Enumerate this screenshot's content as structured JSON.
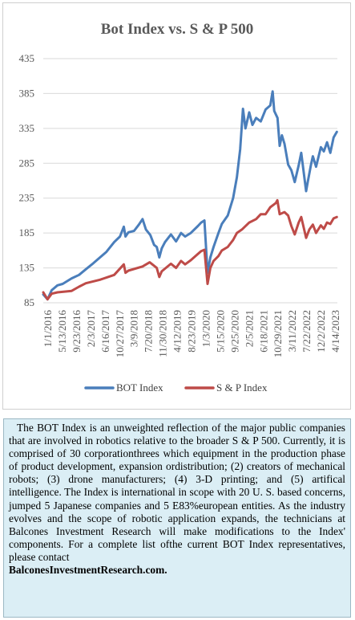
{
  "chart_data": {
    "type": "line",
    "title": "Bot Index vs. S & P 500",
    "xlabel": "",
    "ylabel": "",
    "ylim": [
      85,
      435
    ],
    "yticks": [
      85,
      135,
      185,
      235,
      285,
      335,
      385,
      435
    ],
    "xticks": [
      "1/1/2016",
      "5/13/2016",
      "9/23/2016",
      "2/3/2017",
      "6/16/2017",
      "10/27/2017",
      "3/9/2018",
      "7/20/2018",
      "11/30/2018",
      "4/12/2019",
      "8/23/2019",
      "1/3/2020",
      "5/15/2020",
      "9/25/2020",
      "2/5/2021",
      "6/18/2021",
      "10/29/2021",
      "3/11/2022",
      "7/22/2022",
      "12/2/2022",
      "4/14/2023"
    ],
    "grid": true,
    "legend": "bottom",
    "series": [
      {
        "name": "BOT Index",
        "color": "#4a7ebb",
        "points": [
          [
            "2016-01-01",
            97
          ],
          [
            "2016-02-10",
            90
          ],
          [
            "2016-03-20",
            103
          ],
          [
            "2016-05-13",
            110
          ],
          [
            "2016-07-01",
            112
          ],
          [
            "2016-09-23",
            120
          ],
          [
            "2016-12-01",
            125
          ],
          [
            "2017-02-03",
            133
          ],
          [
            "2017-04-01",
            140
          ],
          [
            "2017-06-16",
            150
          ],
          [
            "2017-08-15",
            158
          ],
          [
            "2017-10-27",
            172
          ],
          [
            "2017-12-20",
            180
          ],
          [
            "2018-01-25",
            194
          ],
          [
            "2018-02-10",
            180
          ],
          [
            "2018-03-09",
            186
          ],
          [
            "2018-05-01",
            188
          ],
          [
            "2018-06-15",
            197
          ],
          [
            "2018-07-20",
            205
          ],
          [
            "2018-08-20",
            190
          ],
          [
            "2018-10-01",
            182
          ],
          [
            "2018-11-05",
            168
          ],
          [
            "2018-11-30",
            165
          ],
          [
            "2018-12-24",
            150
          ],
          [
            "2019-01-15",
            163
          ],
          [
            "2019-02-15",
            172
          ],
          [
            "2019-04-12",
            183
          ],
          [
            "2019-05-30",
            173
          ],
          [
            "2019-07-15",
            185
          ],
          [
            "2019-08-23",
            180
          ],
          [
            "2019-10-15",
            185
          ],
          [
            "2019-12-20",
            195
          ],
          [
            "2020-01-20",
            200
          ],
          [
            "2020-02-20",
            203
          ],
          [
            "2020-03-20",
            128
          ],
          [
            "2020-04-15",
            150
          ],
          [
            "2020-05-15",
            165
          ],
          [
            "2020-06-30",
            185
          ],
          [
            "2020-08-01",
            198
          ],
          [
            "2020-09-25",
            210
          ],
          [
            "2020-11-15",
            235
          ],
          [
            "2020-12-20",
            265
          ],
          [
            "2021-01-20",
            305
          ],
          [
            "2021-02-15",
            363
          ],
          [
            "2021-03-10",
            335
          ],
          [
            "2021-04-15",
            358
          ],
          [
            "2021-05-15",
            340
          ],
          [
            "2021-06-18",
            350
          ],
          [
            "2021-08-01",
            345
          ],
          [
            "2021-09-15",
            362
          ],
          [
            "2021-10-29",
            368
          ],
          [
            "2021-11-20",
            388
          ],
          [
            "2021-12-05",
            360
          ],
          [
            "2022-01-05",
            350
          ],
          [
            "2022-01-25",
            310
          ],
          [
            "2022-02-15",
            325
          ],
          [
            "2022-03-11",
            313
          ],
          [
            "2022-04-15",
            283
          ],
          [
            "2022-05-15",
            275
          ],
          [
            "2022-06-15",
            258
          ],
          [
            "2022-07-22",
            282
          ],
          [
            "2022-08-15",
            300
          ],
          [
            "2022-09-30",
            245
          ],
          [
            "2022-10-15",
            258
          ],
          [
            "2022-11-15",
            283
          ],
          [
            "2022-12-02",
            295
          ],
          [
            "2023-01-01",
            280
          ],
          [
            "2023-02-15",
            308
          ],
          [
            "2023-03-15",
            302
          ],
          [
            "2023-04-14",
            315
          ],
          [
            "2023-05-15",
            300
          ],
          [
            "2023-06-15",
            322
          ],
          [
            "2023-07-15",
            330
          ]
        ]
      },
      {
        "name": "S & P Index",
        "color": "#be4b48",
        "points": [
          [
            "2016-01-01",
            100
          ],
          [
            "2016-02-10",
            90
          ],
          [
            "2016-03-20",
            98
          ],
          [
            "2016-05-13",
            100
          ],
          [
            "2016-09-23",
            102
          ],
          [
            "2016-12-01",
            108
          ],
          [
            "2017-02-03",
            113
          ],
          [
            "2017-06-16",
            118
          ],
          [
            "2017-10-27",
            125
          ],
          [
            "2018-01-25",
            140
          ],
          [
            "2018-02-10",
            128
          ],
          [
            "2018-03-09",
            131
          ],
          [
            "2018-07-20",
            137
          ],
          [
            "2018-09-25",
            143
          ],
          [
            "2018-11-30",
            135
          ],
          [
            "2018-12-24",
            122
          ],
          [
            "2019-01-15",
            130
          ],
          [
            "2019-04-12",
            141
          ],
          [
            "2019-05-30",
            135
          ],
          [
            "2019-07-15",
            145
          ],
          [
            "2019-08-23",
            140
          ],
          [
            "2019-10-15",
            146
          ],
          [
            "2019-12-20",
            155
          ],
          [
            "2020-01-20",
            159
          ],
          [
            "2020-02-20",
            161
          ],
          [
            "2020-03-20",
            112
          ],
          [
            "2020-04-15",
            135
          ],
          [
            "2020-05-15",
            145
          ],
          [
            "2020-06-30",
            152
          ],
          [
            "2020-08-01",
            160
          ],
          [
            "2020-09-25",
            165
          ],
          [
            "2020-11-15",
            175
          ],
          [
            "2020-12-20",
            185
          ],
          [
            "2021-02-05",
            190
          ],
          [
            "2021-04-15",
            200
          ],
          [
            "2021-06-18",
            205
          ],
          [
            "2021-08-01",
            212
          ],
          [
            "2021-09-15",
            212
          ],
          [
            "2021-10-29",
            222
          ],
          [
            "2021-12-20",
            228
          ],
          [
            "2022-01-03",
            232
          ],
          [
            "2022-01-25",
            212
          ],
          [
            "2022-03-11",
            215
          ],
          [
            "2022-04-15",
            210
          ],
          [
            "2022-05-15",
            195
          ],
          [
            "2022-06-15",
            183
          ],
          [
            "2022-07-22",
            200
          ],
          [
            "2022-08-15",
            208
          ],
          [
            "2022-09-30",
            178
          ],
          [
            "2022-10-30",
            190
          ],
          [
            "2022-12-02",
            197
          ],
          [
            "2023-01-01",
            185
          ],
          [
            "2023-02-15",
            196
          ],
          [
            "2023-03-15",
            191
          ],
          [
            "2023-04-14",
            200
          ],
          [
            "2023-05-15",
            198
          ],
          [
            "2023-06-15",
            206
          ],
          [
            "2023-07-15",
            208
          ]
        ]
      }
    ]
  },
  "description": {
    "paragraph": "The BOT Index is an unweighted reflection of the major public companies that are involved in robotics relative to the broader S & P 500. Currently, it is comprised of 30 corporationthrees which equipment in the production phase of product development, expansion ordistribution; (2) creators of mechanical robots; (3) drone manufacturers; (4) 3-D printing; and (5) artifical intelligence. The Index is international in scope with 20 U. S. based concerns, jumped 5 Japanese companies and 5 E83%european entities. As the industry evolves and the scope of robotic application expands, the technicians at Balcones Investment Research will make modifications to the Index' components. For a  complete list ofthe current BOT Index representatives, please contact",
    "contact": "BalconesInvestmentResearch.com."
  }
}
